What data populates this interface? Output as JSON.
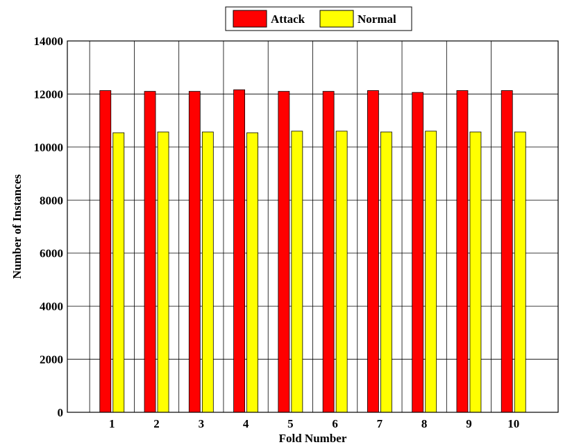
{
  "chart_data": {
    "type": "bar",
    "categories": [
      "1",
      "2",
      "3",
      "4",
      "5",
      "6",
      "7",
      "8",
      "9",
      "10"
    ],
    "series": [
      {
        "name": "Attack",
        "color": "#ff0000",
        "values": [
          12130,
          12100,
          12100,
          12160,
          12100,
          12100,
          12130,
          12060,
          12130,
          12130
        ]
      },
      {
        "name": "Normal",
        "color": "#ffff00",
        "values": [
          10540,
          10570,
          10570,
          10540,
          10600,
          10600,
          10570,
          10600,
          10570,
          10570
        ]
      }
    ],
    "xlabel": "Fold Number",
    "ylabel": "Number of Instances",
    "ylim": [
      0,
      14000
    ],
    "yticks": [
      "0",
      "2000",
      "4000",
      "6000",
      "8000",
      "10000",
      "12000",
      "14000"
    ],
    "grid": true,
    "legend_position": "top-center"
  }
}
